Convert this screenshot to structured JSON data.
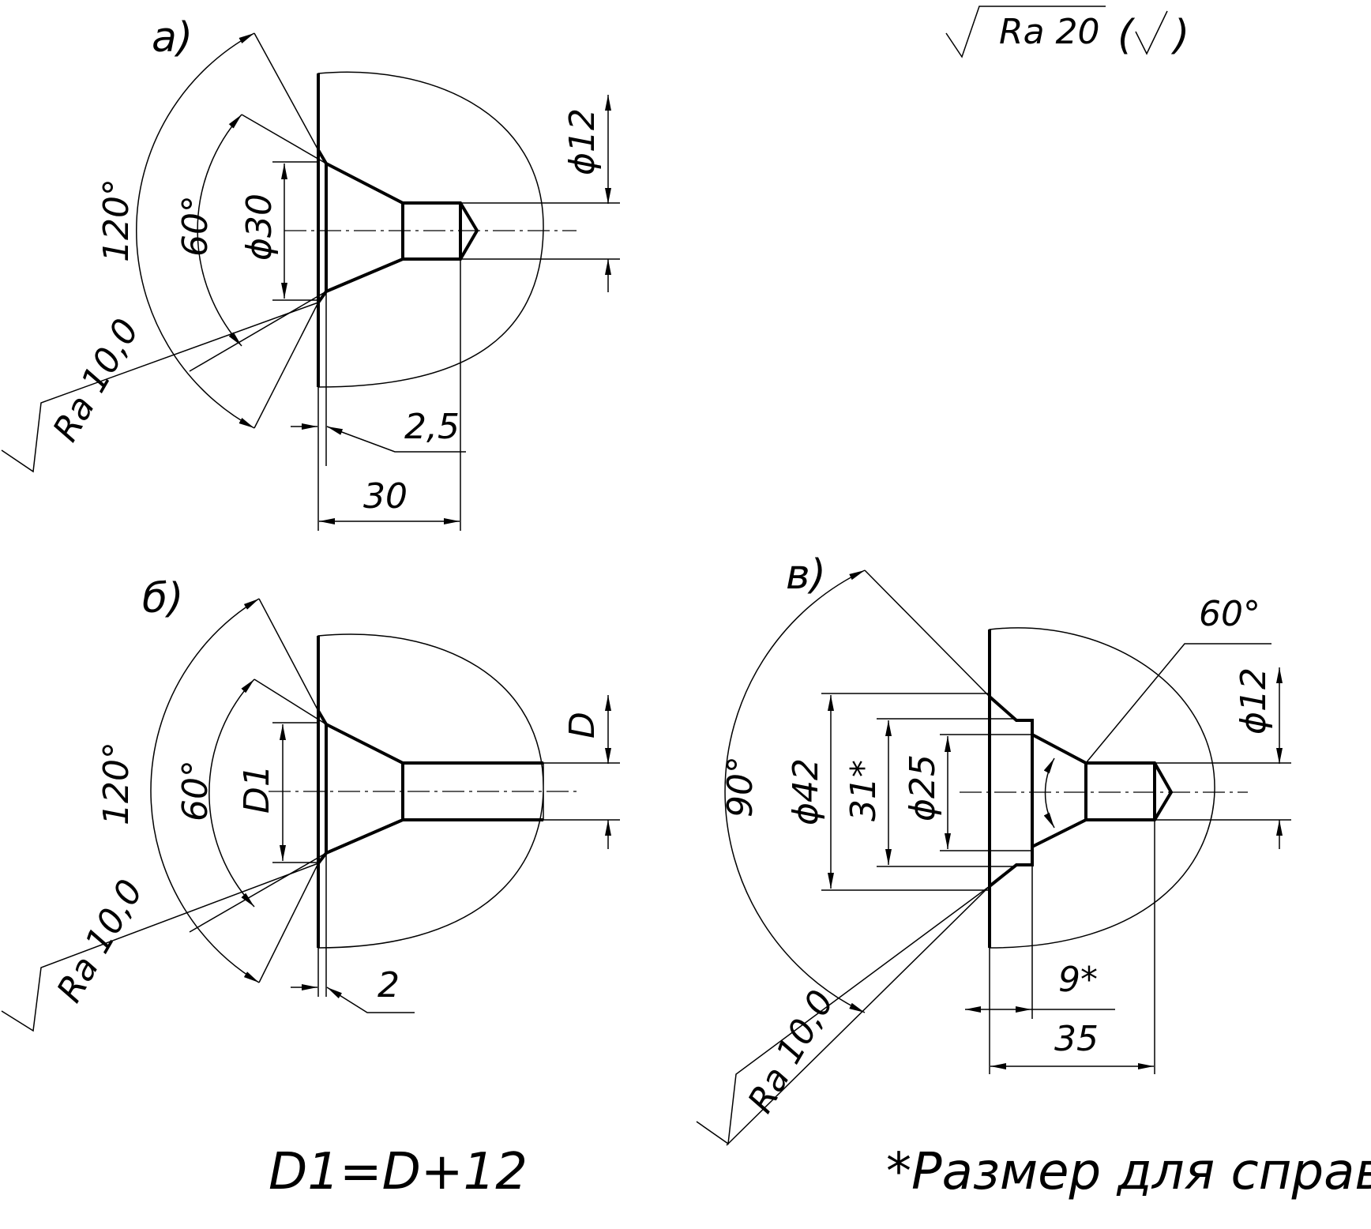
{
  "views": {
    "a": {
      "label": "а)",
      "angle_outer": "120°",
      "angle_inner": "60°",
      "dia_counter": "ϕ30",
      "dia_bore": "ϕ12",
      "roughness": "Ra 10,0",
      "depth_step": "2,5",
      "depth_total": "30"
    },
    "b": {
      "label": "б)",
      "angle_outer": "120°",
      "angle_inner": "60°",
      "dia_counter": "D1",
      "dia_bore": "D",
      "roughness": "Ra 10,0",
      "depth_step": "2"
    },
    "c": {
      "label": "в)",
      "angle_outer": "90°",
      "angle_inner": "60°",
      "dia_outer": "ϕ42",
      "dia_ref": "31*",
      "dia_counter": "ϕ25",
      "dia_bore": "ϕ12",
      "roughness": "Ra 10,0",
      "depth_ref": "9*",
      "depth_total": "35"
    }
  },
  "general_roughness": {
    "value": "Ra 20",
    "suffix_open": "(",
    "suffix_close": ")"
  },
  "notes": {
    "formula": "D1=D+12",
    "reference": "*Размер для справок"
  }
}
